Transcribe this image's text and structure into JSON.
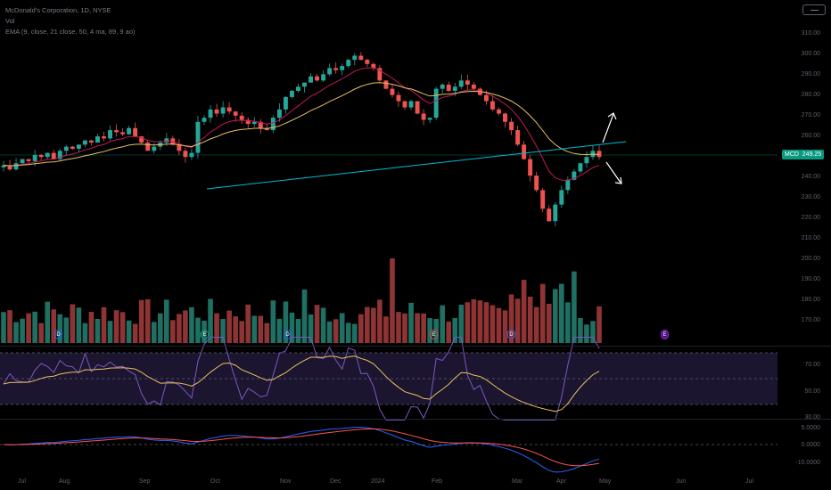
{
  "header": {
    "title": "McDonald's Corporation, 1D, NYSE",
    "legend_line2": "Vol",
    "legend_line3": "EMA (9, close, 21 close, 50, 4 ma, 89, 9 ao)"
  },
  "price_axis": {
    "labels": [
      "310.00",
      "300.00",
      "290.00",
      "280.00",
      "270.00",
      "260.00",
      "250.00",
      "240.00",
      "230.00",
      "220.00",
      "210.00",
      "200.00",
      "190.00",
      "180.00",
      "170.00"
    ]
  },
  "rsi_axis": {
    "labels": [
      "70.00",
      "50.00",
      "30.00"
    ]
  },
  "macd_axis": {
    "labels": [
      "5.0000",
      "0.0000",
      "-10.0000"
    ]
  },
  "symbol_tag": {
    "symbol": "MCD",
    "price": "249.25"
  },
  "time_axis": {
    "labels": [
      "Jul",
      "Aug",
      "Sep",
      "Oct",
      "Nov",
      "Dec",
      "2024",
      "Feb",
      "Mar",
      "Apr",
      "May",
      "Jun",
      "Jul"
    ]
  },
  "events": [
    {
      "glyph": "D",
      "color": "#2962ff"
    },
    {
      "glyph": "E",
      "color": "#089981"
    },
    {
      "glyph": "D",
      "color": "#2962ff"
    },
    {
      "glyph": "E",
      "color": "#f23645"
    },
    {
      "glyph": "D",
      "color": "#2962ff"
    },
    {
      "glyph": "E",
      "color": "#9c27b0"
    }
  ],
  "colors": {
    "bull": "#26a69a",
    "bear": "#ef5350",
    "ema_fast": "#c2185b",
    "ema_slow": "#e6c260",
    "trendline": "#00bcd4",
    "rsi": "#7e57c2",
    "macd": "#2962ff",
    "signal": "#ff5252"
  },
  "chart_data": {
    "type": "candlestick",
    "symbol": "MCD",
    "interval": "1D",
    "last_price": 249.25,
    "close_series_approx": [
      245,
      243,
      246,
      248,
      247,
      250,
      249,
      251,
      248,
      252,
      254,
      253,
      255,
      257,
      256,
      259,
      258,
      262,
      261,
      260,
      263,
      259,
      256,
      252,
      254,
      256,
      258,
      255,
      252,
      249,
      251,
      266,
      268,
      272,
      270,
      273,
      271,
      269,
      267,
      265,
      266,
      263,
      262,
      268,
      272,
      278,
      281,
      283,
      285,
      288,
      286,
      289,
      292,
      291,
      293,
      296,
      298,
      296,
      294,
      292,
      286,
      282,
      279,
      276,
      273,
      276,
      270,
      267,
      268,
      282,
      284,
      281,
      283,
      286,
      284,
      282,
      279,
      276,
      272,
      270,
      266,
      262,
      255,
      248,
      240,
      233,
      224,
      218,
      226,
      233,
      238,
      242,
      246,
      249,
      252,
      249
    ]
  }
}
